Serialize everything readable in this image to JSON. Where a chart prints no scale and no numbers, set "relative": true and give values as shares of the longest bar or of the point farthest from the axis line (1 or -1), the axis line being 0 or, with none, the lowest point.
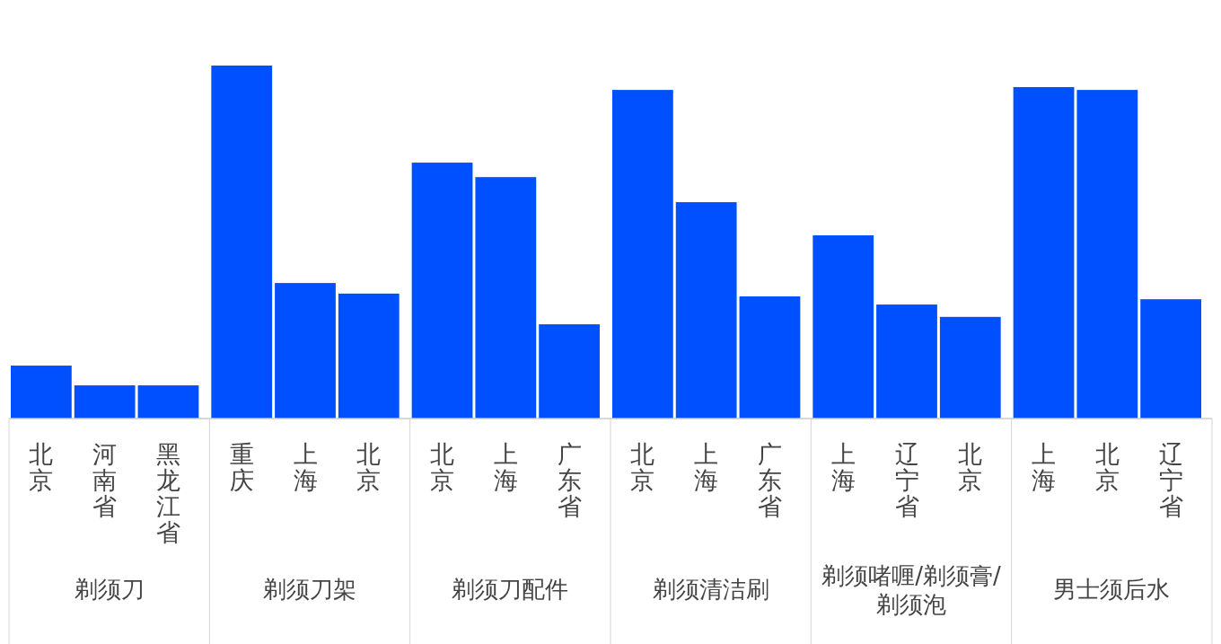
{
  "chart_data": {
    "type": "bar",
    "relative": true,
    "color": "#0050ff",
    "categories": [
      "北京",
      "河南省",
      "黑龙江省",
      "重庆",
      "上海",
      "北京",
      "北京",
      "上海",
      "广东省",
      "北京",
      "上海",
      "广东省",
      "上海",
      "辽宁省",
      "北京",
      "上海",
      "北京",
      "辽宁省"
    ],
    "values": [
      0.15,
      0.094,
      0.094,
      1,
      0.384,
      0.354,
      0.725,
      0.684,
      0.267,
      0.931,
      0.613,
      0.346,
      0.519,
      0.323,
      0.288,
      0.939,
      0.931,
      0.338
    ],
    "annotations": [
      "剃须刀",
      "剃须刀架",
      "剃须刀配件",
      "剃须清洁刷",
      "剃须啫喱/剃须膏/剃须泡",
      "男士须后水"
    ]
  }
}
